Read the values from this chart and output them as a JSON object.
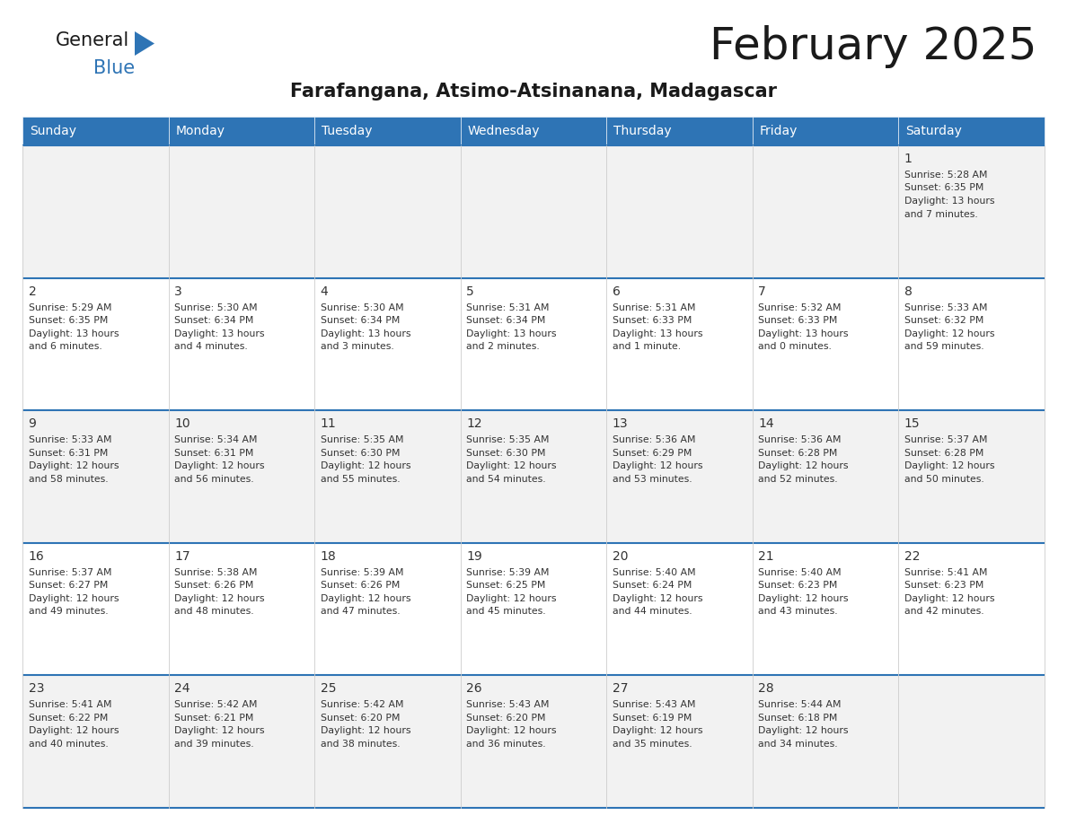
{
  "title": "February 2025",
  "subtitle": "Farafangana, Atsimo-Atsinanana, Madagascar",
  "header_bg": "#2E74B5",
  "header_text_color": "#FFFFFF",
  "days_of_week": [
    "Sunday",
    "Monday",
    "Tuesday",
    "Wednesday",
    "Thursday",
    "Friday",
    "Saturday"
  ],
  "cell_bg_odd": "#F2F2F2",
  "cell_bg_even": "#FFFFFF",
  "border_color": "#2E74B5",
  "text_color": "#333333",
  "calendar_data": [
    [
      null,
      null,
      null,
      null,
      null,
      null,
      {
        "day": "1",
        "sunrise": "5:28 AM",
        "sunset": "6:35 PM",
        "daylight_line1": "Daylight: 13 hours",
        "daylight_line2": "and 7 minutes."
      }
    ],
    [
      {
        "day": "2",
        "sunrise": "5:29 AM",
        "sunset": "6:35 PM",
        "daylight_line1": "Daylight: 13 hours",
        "daylight_line2": "and 6 minutes."
      },
      {
        "day": "3",
        "sunrise": "5:30 AM",
        "sunset": "6:34 PM",
        "daylight_line1": "Daylight: 13 hours",
        "daylight_line2": "and 4 minutes."
      },
      {
        "day": "4",
        "sunrise": "5:30 AM",
        "sunset": "6:34 PM",
        "daylight_line1": "Daylight: 13 hours",
        "daylight_line2": "and 3 minutes."
      },
      {
        "day": "5",
        "sunrise": "5:31 AM",
        "sunset": "6:34 PM",
        "daylight_line1": "Daylight: 13 hours",
        "daylight_line2": "and 2 minutes."
      },
      {
        "day": "6",
        "sunrise": "5:31 AM",
        "sunset": "6:33 PM",
        "daylight_line1": "Daylight: 13 hours",
        "daylight_line2": "and 1 minute."
      },
      {
        "day": "7",
        "sunrise": "5:32 AM",
        "sunset": "6:33 PM",
        "daylight_line1": "Daylight: 13 hours",
        "daylight_line2": "and 0 minutes."
      },
      {
        "day": "8",
        "sunrise": "5:33 AM",
        "sunset": "6:32 PM",
        "daylight_line1": "Daylight: 12 hours",
        "daylight_line2": "and 59 minutes."
      }
    ],
    [
      {
        "day": "9",
        "sunrise": "5:33 AM",
        "sunset": "6:31 PM",
        "daylight_line1": "Daylight: 12 hours",
        "daylight_line2": "and 58 minutes."
      },
      {
        "day": "10",
        "sunrise": "5:34 AM",
        "sunset": "6:31 PM",
        "daylight_line1": "Daylight: 12 hours",
        "daylight_line2": "and 56 minutes."
      },
      {
        "day": "11",
        "sunrise": "5:35 AM",
        "sunset": "6:30 PM",
        "daylight_line1": "Daylight: 12 hours",
        "daylight_line2": "and 55 minutes."
      },
      {
        "day": "12",
        "sunrise": "5:35 AM",
        "sunset": "6:30 PM",
        "daylight_line1": "Daylight: 12 hours",
        "daylight_line2": "and 54 minutes."
      },
      {
        "day": "13",
        "sunrise": "5:36 AM",
        "sunset": "6:29 PM",
        "daylight_line1": "Daylight: 12 hours",
        "daylight_line2": "and 53 minutes."
      },
      {
        "day": "14",
        "sunrise": "5:36 AM",
        "sunset": "6:28 PM",
        "daylight_line1": "Daylight: 12 hours",
        "daylight_line2": "and 52 minutes."
      },
      {
        "day": "15",
        "sunrise": "5:37 AM",
        "sunset": "6:28 PM",
        "daylight_line1": "Daylight: 12 hours",
        "daylight_line2": "and 50 minutes."
      }
    ],
    [
      {
        "day": "16",
        "sunrise": "5:37 AM",
        "sunset": "6:27 PM",
        "daylight_line1": "Daylight: 12 hours",
        "daylight_line2": "and 49 minutes."
      },
      {
        "day": "17",
        "sunrise": "5:38 AM",
        "sunset": "6:26 PM",
        "daylight_line1": "Daylight: 12 hours",
        "daylight_line2": "and 48 minutes."
      },
      {
        "day": "18",
        "sunrise": "5:39 AM",
        "sunset": "6:26 PM",
        "daylight_line1": "Daylight: 12 hours",
        "daylight_line2": "and 47 minutes."
      },
      {
        "day": "19",
        "sunrise": "5:39 AM",
        "sunset": "6:25 PM",
        "daylight_line1": "Daylight: 12 hours",
        "daylight_line2": "and 45 minutes."
      },
      {
        "day": "20",
        "sunrise": "5:40 AM",
        "sunset": "6:24 PM",
        "daylight_line1": "Daylight: 12 hours",
        "daylight_line2": "and 44 minutes."
      },
      {
        "day": "21",
        "sunrise": "5:40 AM",
        "sunset": "6:23 PM",
        "daylight_line1": "Daylight: 12 hours",
        "daylight_line2": "and 43 minutes."
      },
      {
        "day": "22",
        "sunrise": "5:41 AM",
        "sunset": "6:23 PM",
        "daylight_line1": "Daylight: 12 hours",
        "daylight_line2": "and 42 minutes."
      }
    ],
    [
      {
        "day": "23",
        "sunrise": "5:41 AM",
        "sunset": "6:22 PM",
        "daylight_line1": "Daylight: 12 hours",
        "daylight_line2": "and 40 minutes."
      },
      {
        "day": "24",
        "sunrise": "5:42 AM",
        "sunset": "6:21 PM",
        "daylight_line1": "Daylight: 12 hours",
        "daylight_line2": "and 39 minutes."
      },
      {
        "day": "25",
        "sunrise": "5:42 AM",
        "sunset": "6:20 PM",
        "daylight_line1": "Daylight: 12 hours",
        "daylight_line2": "and 38 minutes."
      },
      {
        "day": "26",
        "sunrise": "5:43 AM",
        "sunset": "6:20 PM",
        "daylight_line1": "Daylight: 12 hours",
        "daylight_line2": "and 36 minutes."
      },
      {
        "day": "27",
        "sunrise": "5:43 AM",
        "sunset": "6:19 PM",
        "daylight_line1": "Daylight: 12 hours",
        "daylight_line2": "and 35 minutes."
      },
      {
        "day": "28",
        "sunrise": "5:44 AM",
        "sunset": "6:18 PM",
        "daylight_line1": "Daylight: 12 hours",
        "daylight_line2": "and 34 minutes."
      },
      null
    ]
  ],
  "fig_width": 11.88,
  "fig_height": 9.18,
  "dpi": 100,
  "title_fontsize": 36,
  "subtitle_fontsize": 15,
  "header_fontsize": 10,
  "day_num_fontsize": 10,
  "info_fontsize": 7.8,
  "logo_general_fontsize": 15,
  "logo_blue_fontsize": 15
}
